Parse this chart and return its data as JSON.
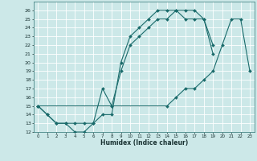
{
  "title": "",
  "xlabel": "Humidex (Indice chaleur)",
  "ylabel": "",
  "bg_color": "#cce8e8",
  "grid_color": "#ffffff",
  "line_color": "#1a6b6b",
  "xlim": [
    -0.5,
    23.5
  ],
  "ylim": [
    12,
    27
  ],
  "xticks": [
    0,
    1,
    2,
    3,
    4,
    5,
    6,
    7,
    8,
    9,
    10,
    11,
    12,
    13,
    14,
    15,
    16,
    17,
    18,
    19,
    20,
    21,
    22,
    23
  ],
  "yticks": [
    12,
    13,
    14,
    15,
    16,
    17,
    18,
    19,
    20,
    21,
    22,
    23,
    24,
    25,
    26
  ],
  "series": [
    {
      "x": [
        0,
        1,
        2,
        3,
        4,
        5,
        6,
        7,
        8,
        9,
        10,
        11,
        12,
        13,
        14,
        15,
        16,
        17,
        18,
        19
      ],
      "y": [
        15,
        14,
        13,
        13,
        13,
        13,
        13,
        17,
        15,
        19,
        22,
        23,
        24,
        25,
        25,
        26,
        26,
        26,
        25,
        22
      ]
    },
    {
      "x": [
        0,
        1,
        2,
        3,
        4,
        5,
        6,
        7,
        8,
        9,
        10,
        11,
        12,
        13,
        14,
        15,
        16,
        17,
        18,
        19
      ],
      "y": [
        15,
        14,
        13,
        13,
        12,
        12,
        13,
        14,
        14,
        20,
        23,
        24,
        25,
        26,
        26,
        26,
        25,
        25,
        25,
        21
      ]
    },
    {
      "x": [
        0,
        14,
        15,
        16,
        17,
        18,
        19,
        20,
        21,
        22,
        23
      ],
      "y": [
        15,
        15,
        16,
        17,
        17,
        18,
        19,
        22,
        25,
        25,
        19
      ]
    }
  ]
}
